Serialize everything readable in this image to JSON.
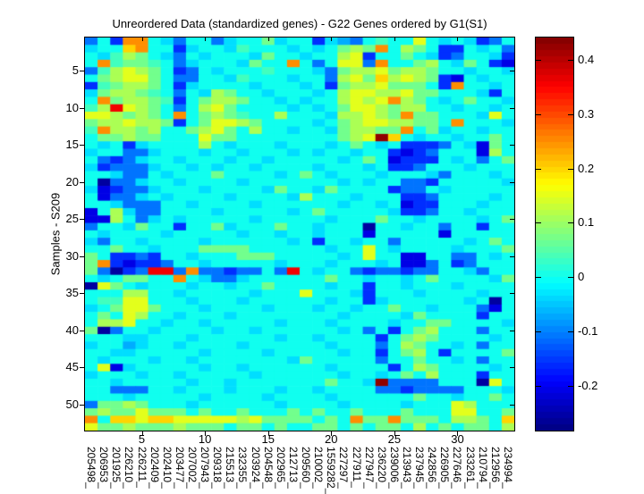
{
  "chart_data": {
    "type": "heatmap",
    "title": "Unreordered Data (standardized genes) - G22 Genes ordered by G1(S1)",
    "ylabel": "Samples - S209",
    "xlabel": "",
    "colormap": "jet",
    "grid_lines": "off",
    "legend": "colorbar-right",
    "clim": [
      -0.283,
      0.4415
    ],
    "n_rows": 53,
    "n_cols": 34,
    "x_ticks": [
      5,
      10,
      15,
      20,
      25,
      30
    ],
    "x_tick_labels": [
      "5",
      "10",
      "15",
      "20",
      "25",
      "30"
    ],
    "y_ticks": [
      5,
      10,
      15,
      20,
      25,
      30,
      35,
      40,
      45,
      50
    ],
    "y_tick_labels": [
      "5",
      "10",
      "15",
      "20",
      "25",
      "30",
      "35",
      "40",
      "45",
      "50"
    ],
    "colorbar_tick_values": [
      0.4,
      0.3,
      0.2,
      0.1,
      0,
      -0.1,
      -0.2
    ],
    "colorbar_tick_labels": [
      "0.4",
      "0.3",
      "0.2",
      "0.1",
      "0",
      "-0.1",
      "-0.2"
    ],
    "x_labels": [
      "205498_",
      "206953_",
      "201925_",
      "226210_",
      "226211_",
      "202409_",
      "202410_",
      "203477_",
      "207002_",
      "207943_",
      "209318_",
      "215513_",
      "232355_",
      "203924_",
      "204548_",
      "202965_",
      "212713_",
      "209560_",
      "210002_",
      "1559282_",
      "227297_",
      "227911_",
      "227947_",
      "236220_",
      "239006_",
      "213943_",
      "237945_",
      "242856_",
      "226905_",
      "227646_",
      "233261_",
      "210794_",
      "212956_",
      "234994_"
    ],
    "value_note": "grid cells are quantized standardized expression values; each char in a grid row string maps through levels -> level_values",
    "levels": "0123456789abcdef",
    "level_values": [
      -0.26,
      -0.21,
      -0.16,
      -0.11,
      -0.07,
      -0.035,
      0,
      0.035,
      0.07,
      0.11,
      0.15,
      0.2,
      0.25,
      0.3,
      0.36,
      0.43
    ],
    "grid": [
      "362cc653663566856625436766a6565236",
      "566bc662566576665656898c6986226563",
      "657986536566658665669a266865236652",
      "6c78876356665866c636aa3c6689658621",
      "379a9862365666766653899a8998665665",
      "689aa8633665766656639a8b9a98216566",
      "27899862566665666562899a88862c6656",
      "589987636598665666569aa99a88666526",
      "6c8998726899866565669a9ac986568665",
      "79ea986369a8666656568aa98996656656",
      "aa98986c68987669666599a98c886665a6",
      "899a998268aa9866665689aa99886c6665",
      "7c99896689a86966566589988c68566566",
      "688988666a886666666689afb656656686",
      "6562566669656665666568656222365186",
      "5663356665665666565665662123666196",
      "6323566566656656666656861222656368",
      "5233356656566566665666562236665666",
      "6653365666866665686566656665366656",
      "6033566566665666666656566332666665",
      "5123356665666658665866662336566666",
      "6133565666656666596665666223666656",
      "6653336656666566666656656122666566",
      "1695336666566666568666665223665666",
      "1196356566666566666566686656666568",
      "3665866266856668665666066566366266",
      "6566665666665665665666166666166666",
      "5366566665666666562665663666665686",
      "6686656668888666666566a65666656668",
      "8622326656668886666656a66116633656",
      "8c21223665666665666566656113623666",
      "83023ee3c3323363e65663233233665366",
      "6568866c65335666666866566568666658",
      "0a86566656656686666566266566656666",
      "66699665666665666a6665266656666566",
      "677aa66656665666666566256666665606",
      "568aa86665666656665665668665666316",
      "686a966566656666666656666586666266",
      "699a665665666665666566665668866665",
      "8036656666566566666656362689666366",
      "6665566656666665665666626898666656",
      "5664566566665666666566636986656366",
      "6655666665666656666656626896266668",
      "6566656656666666586666636686656366",
      "6a15666665665666666566662698666656",
      "5666566566666566666656656869666266",
      "66566666566566666668665f33336660a6",
      "6633366566656665665666633233336665",
      "6665666665666656666566666686656686",
      "38898666566666656666566665666a9666",
      "8988a888686686668686686668666aa668",
      "c6bbabbaaaaa9a8888686c88c88869986b",
      "a889888988868868668868688696868869"
    ]
  }
}
